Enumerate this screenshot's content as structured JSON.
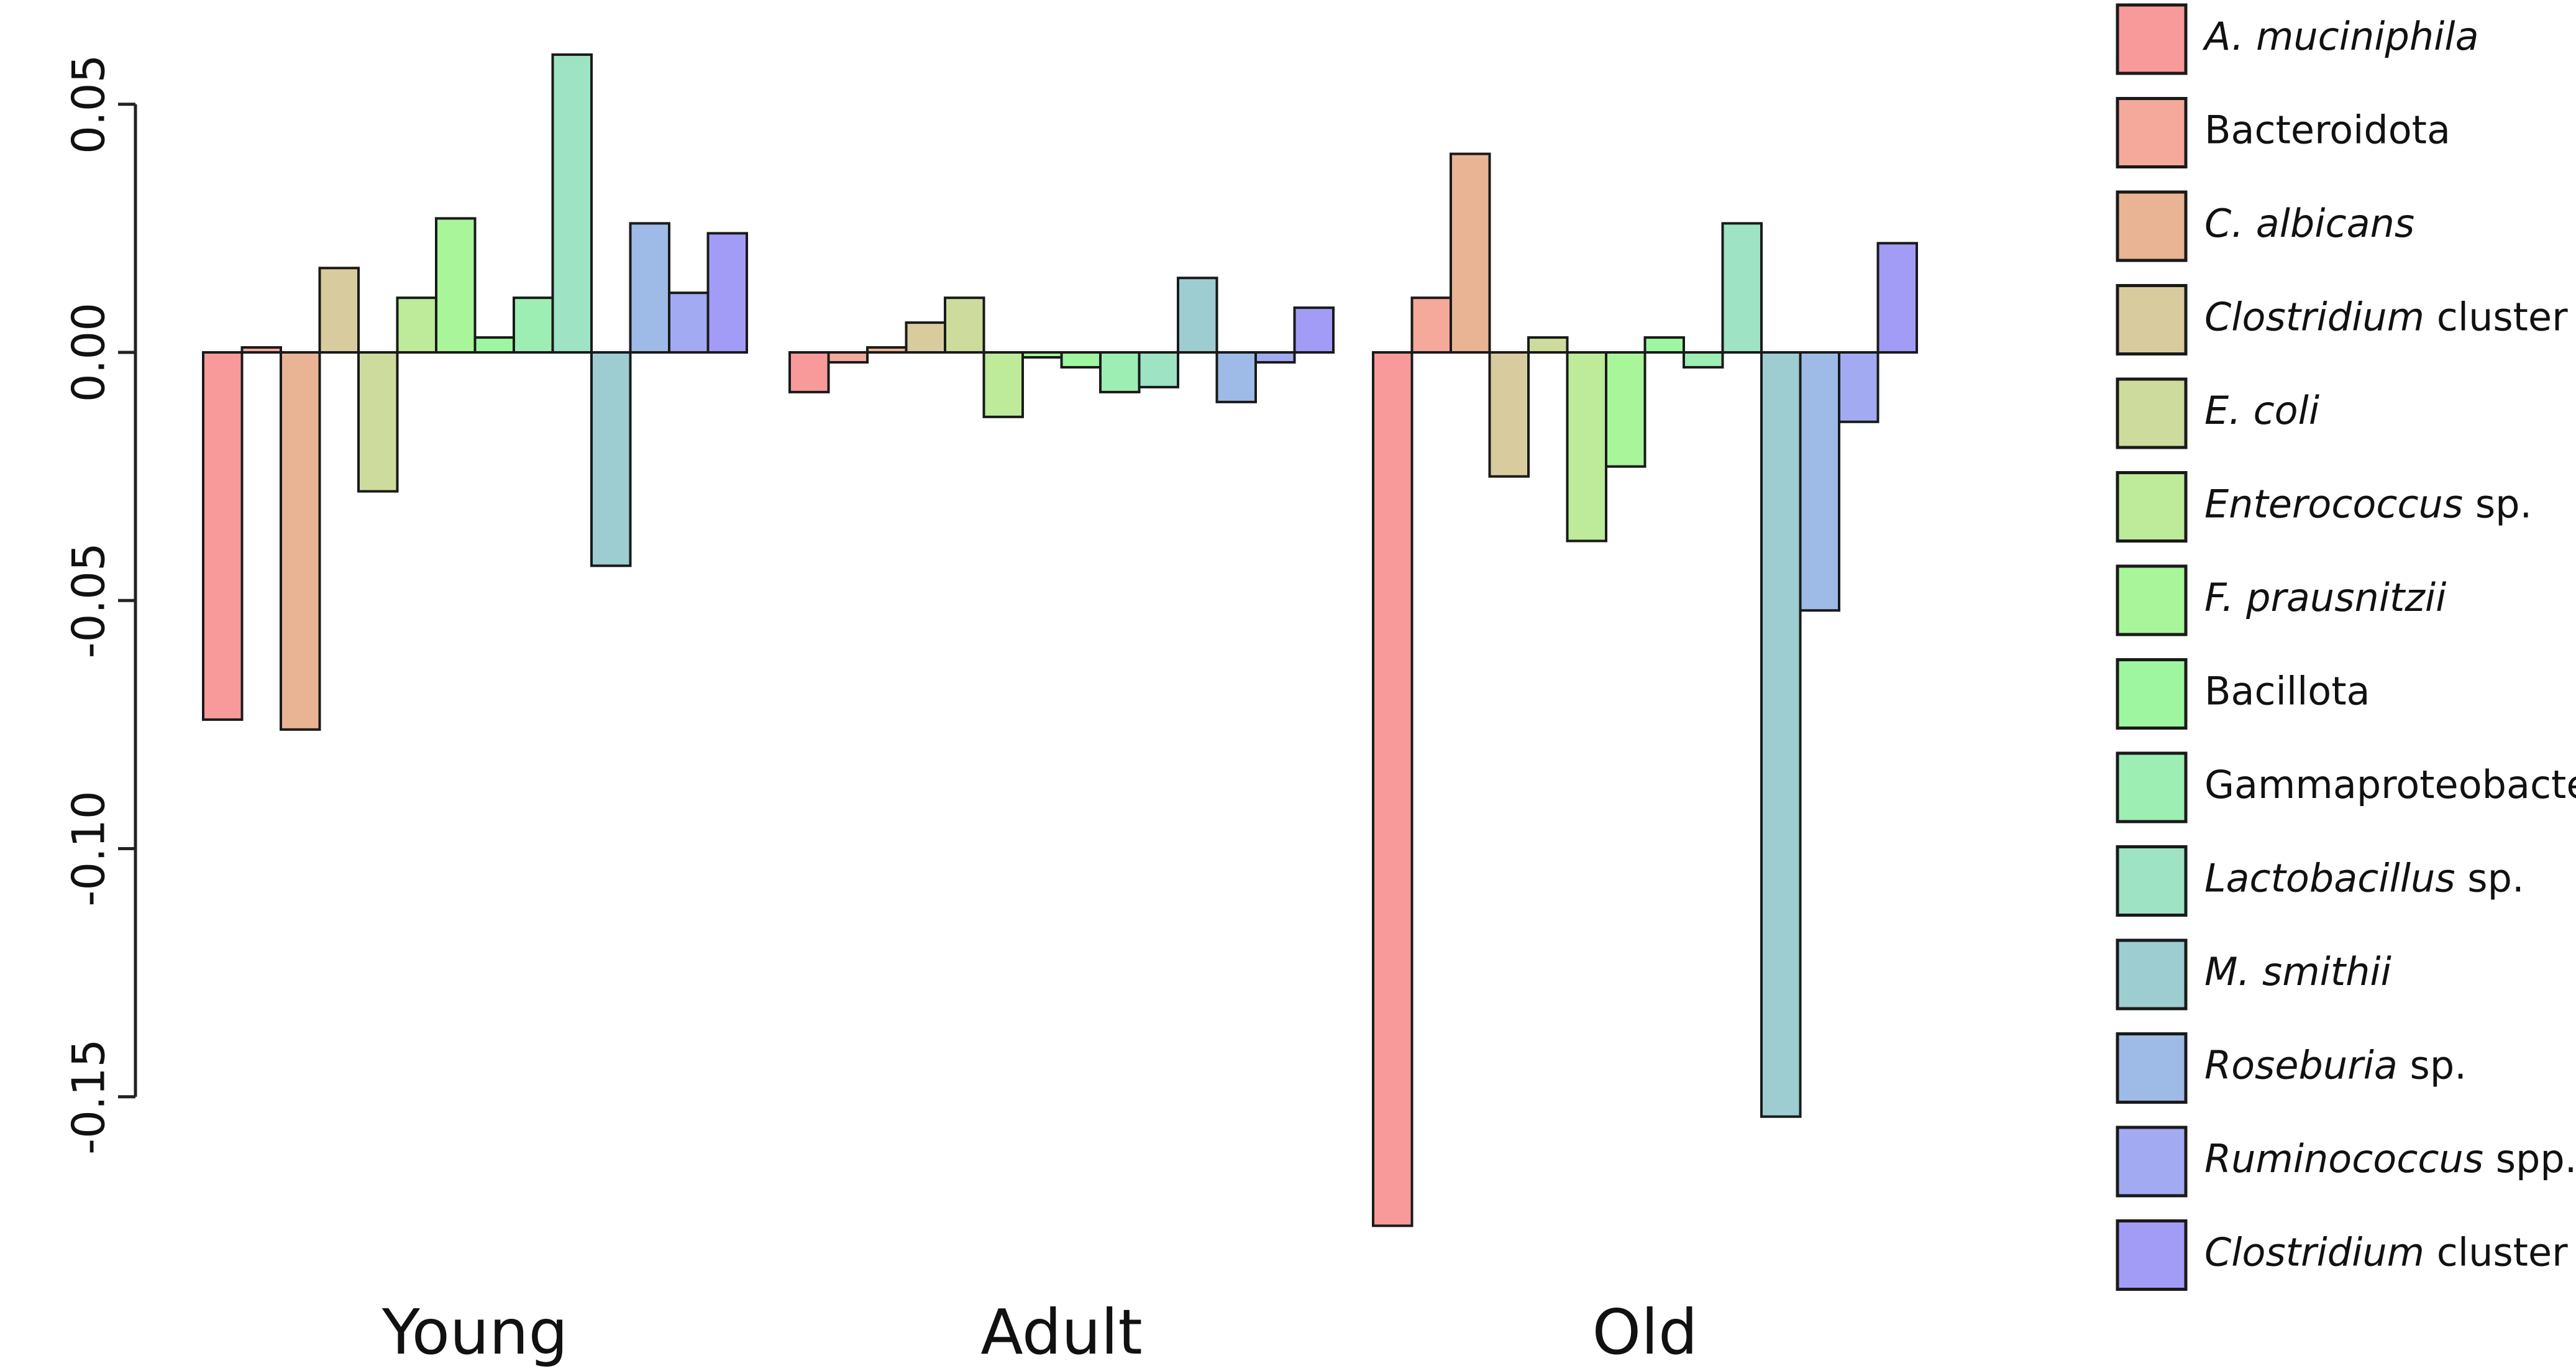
{
  "chart_data": {
    "type": "bar",
    "title": "",
    "xlabel": "",
    "ylabel": "",
    "ylim": [
      -0.18,
      0.06
    ],
    "y_ticks": [
      "0.05",
      "0.00",
      "-0.05",
      "-0.10",
      "-0.15"
    ],
    "y_tick_values": [
      0.05,
      0.0,
      -0.05,
      -0.1,
      -0.15
    ],
    "categories": [
      "Young",
      "Adult",
      "Old"
    ],
    "legend_position": "right",
    "series": [
      {
        "name": "A. muciniphila",
        "name_italic": "A. muciniphila",
        "name_rest": "",
        "color": "#f89a9a",
        "values": [
          -0.074,
          -0.008,
          -0.176
        ]
      },
      {
        "name": "Bacteroidota",
        "name_italic": "",
        "name_rest": "Bacteroidota",
        "color": "#f4a99a",
        "values": [
          0.001,
          -0.002,
          0.011
        ]
      },
      {
        "name": "C. albicans",
        "name_italic": "C. albicans",
        "name_rest": "",
        "color": "#e9b494",
        "values": [
          -0.076,
          0.001,
          0.04
        ]
      },
      {
        "name": "Clostridium cluster I",
        "name_italic": "Clostridium",
        "name_rest": " cluster I",
        "color": "#d8cb9e",
        "values": [
          0.017,
          0.006,
          -0.025
        ]
      },
      {
        "name": "E. coli",
        "name_italic": "E. coli",
        "name_rest": "",
        "color": "#cddc9c",
        "values": [
          -0.028,
          0.011,
          0.003
        ]
      },
      {
        "name": "Enterococcus sp.",
        "name_italic": "Enterococcus",
        "name_rest": " sp.",
        "color": "#bdeb99",
        "values": [
          0.011,
          -0.013,
          -0.038
        ]
      },
      {
        "name": "F. prausnitzii",
        "name_italic": "F. prausnitzii",
        "name_rest": "",
        "color": "#a9f59a",
        "values": [
          0.027,
          -0.001,
          -0.023
        ]
      },
      {
        "name": "Bacillota",
        "name_italic": "",
        "name_rest": "Bacillota",
        "color": "#9ef7a0",
        "values": [
          0.003,
          -0.003,
          0.003
        ]
      },
      {
        "name": "Gammaproteobacteria",
        "name_italic": "",
        "name_rest": "Gammaproteobacteria",
        "color": "#9deeb3",
        "values": [
          0.011,
          -0.008,
          -0.003
        ]
      },
      {
        "name": "Lactobacillus sp.",
        "name_italic": "Lactobacillus",
        "name_rest": " sp.",
        "color": "#9de3c4",
        "values": [
          0.06,
          -0.007,
          0.026
        ]
      },
      {
        "name": "M. smithii",
        "name_italic": "M. smithii",
        "name_rest": "",
        "color": "#9dcdd0",
        "values": [
          -0.043,
          0.015,
          -0.154
        ]
      },
      {
        "name": "Roseburia sp.",
        "name_italic": "Roseburia",
        "name_rest": " sp.",
        "color": "#9dbbe6",
        "values": [
          0.026,
          -0.01,
          -0.052
        ]
      },
      {
        "name": "Ruminococcus spp.",
        "name_italic": "Ruminococcus",
        "name_rest": " spp.",
        "color": "#a2aaf2",
        "values": [
          0.012,
          -0.002,
          -0.014
        ]
      },
      {
        "name": "Clostridium cluster XIV",
        "name_italic": "Clostridium",
        "name_rest": " cluster XIV",
        "color": "#a39cf7",
        "values": [
          0.024,
          0.009,
          0.022
        ]
      }
    ]
  }
}
